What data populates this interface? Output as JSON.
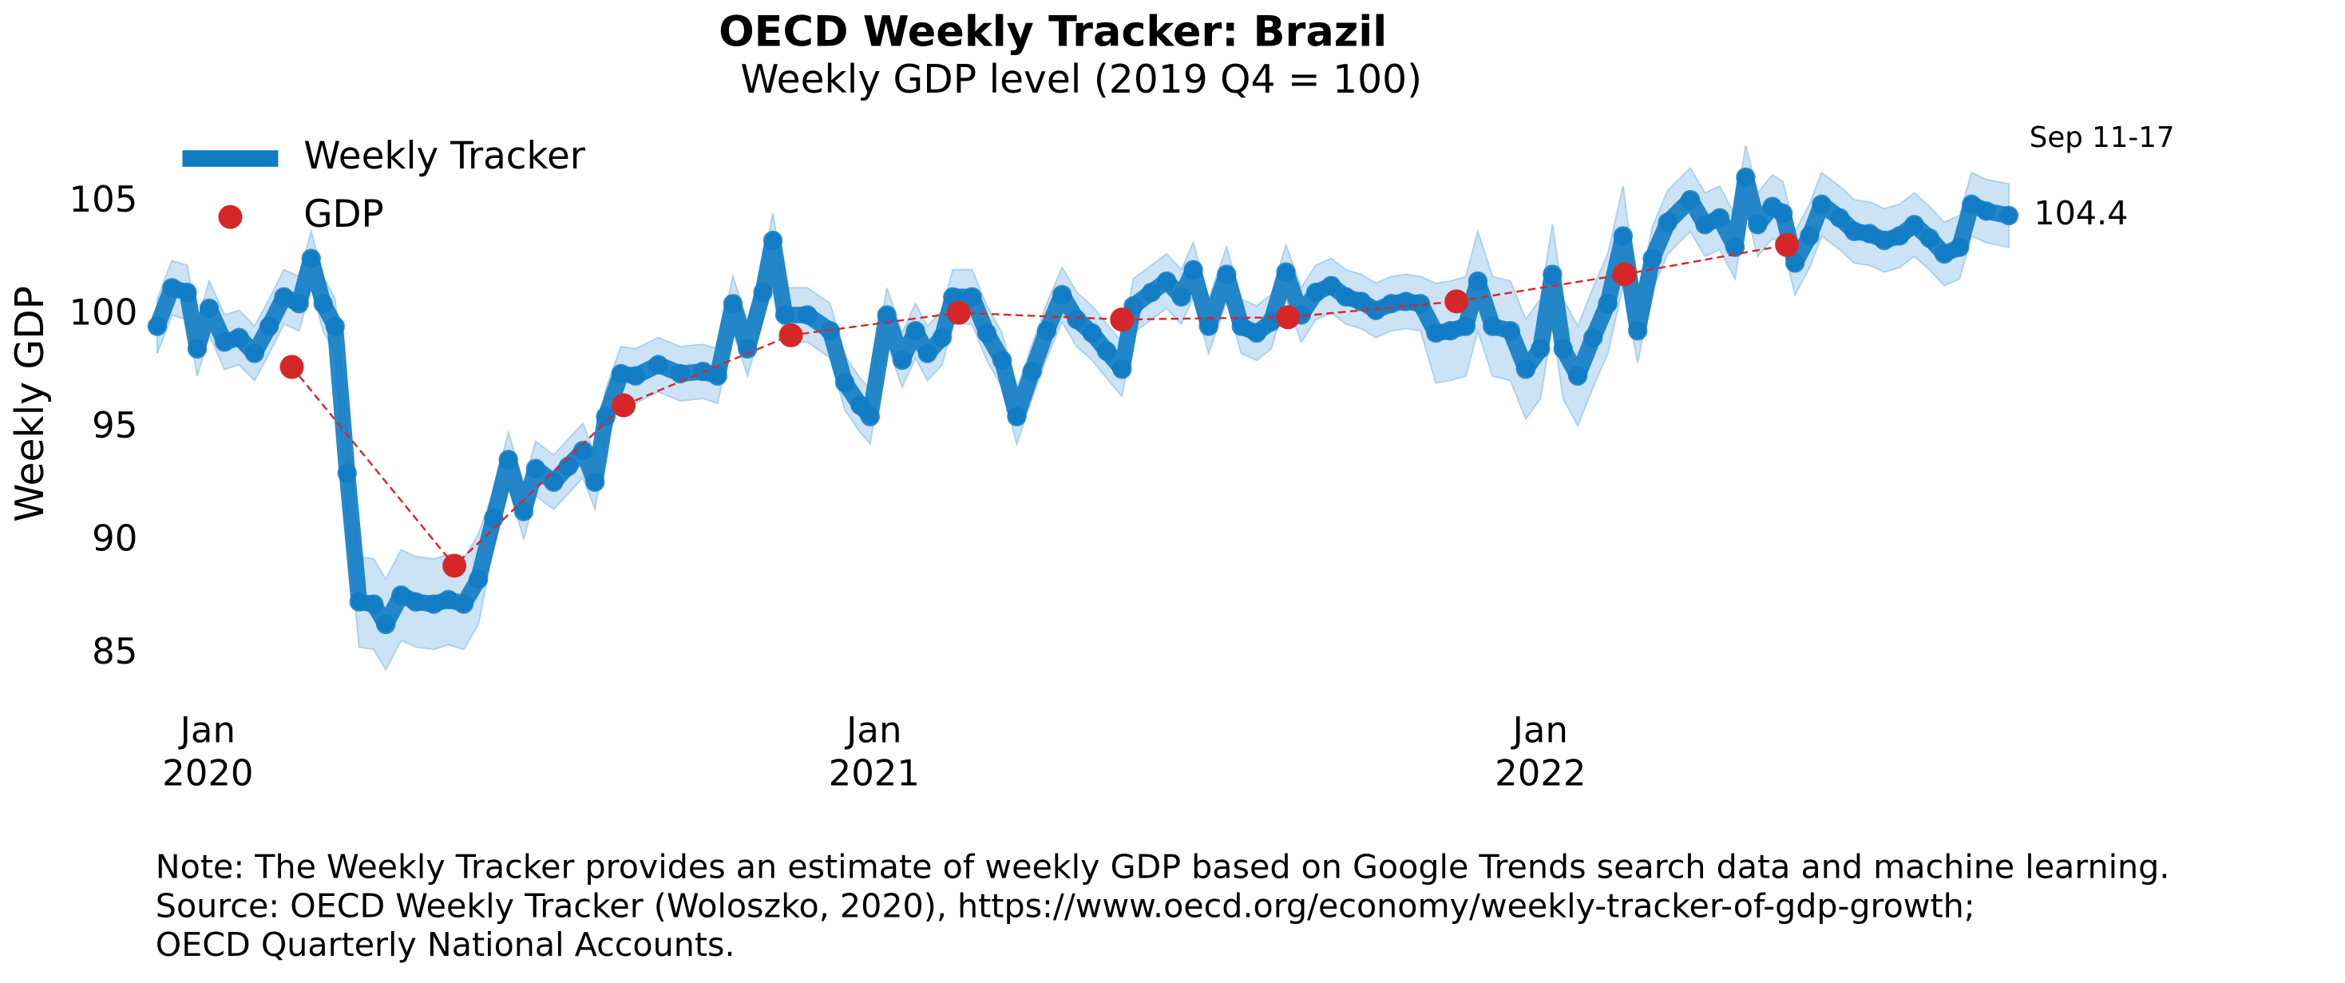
{
  "chart_data": {
    "type": "line",
    "title": "OECD Weekly Tracker: Brazil",
    "subtitle": "Weekly GDP level (2019 Q4 = 100)",
    "ylabel": "Weekly GDP",
    "xlim": [
      2019.91,
      2022.72
    ],
    "ylim": [
      82.8,
      108.3
    ],
    "xticks": [
      {
        "value": 2020,
        "label": "Jan\n2020"
      },
      {
        "value": 2021,
        "label": "Jan\n2021"
      },
      {
        "value": 2022,
        "label": "Jan\n2022"
      }
    ],
    "yticks": [
      85,
      90,
      95,
      100,
      105
    ],
    "grid": false,
    "legend": "upper left",
    "series": [
      {
        "name": "Weekly Tracker",
        "color": "#0f7bc4",
        "band_color": "#a9d0ec",
        "x": [
          2019.924,
          2019.946,
          2019.969,
          2019.984,
          2020.002,
          2020.025,
          2020.047,
          2020.07,
          2020.092,
          2020.114,
          2020.137,
          2020.155,
          2020.173,
          2020.191,
          2020.209,
          2020.227,
          2020.249,
          2020.267,
          2020.29,
          2020.312,
          2020.339,
          2020.361,
          2020.384,
          2020.406,
          2020.429,
          2020.451,
          2020.474,
          2020.492,
          2020.519,
          2020.541,
          2020.563,
          2020.581,
          2020.597,
          2020.62,
          2020.642,
          2020.676,
          2020.709,
          2020.743,
          2020.765,
          2020.788,
          2020.81,
          2020.833,
          2020.848,
          2020.866,
          2020.9,
          2020.934,
          2020.956,
          2020.979,
          2020.994,
          2021.019,
          2021.042,
          2021.062,
          2021.08,
          2021.102,
          2021.118,
          2021.147,
          2021.169,
          2021.192,
          2021.214,
          2021.237,
          2021.259,
          2021.282,
          2021.304,
          2021.327,
          2021.349,
          2021.372,
          2021.389,
          2021.416,
          2021.439,
          2021.461,
          2021.479,
          2021.502,
          2021.529,
          2021.551,
          2021.574,
          2021.596,
          2021.618,
          2021.641,
          2021.663,
          2021.686,
          2021.708,
          2021.731,
          2021.753,
          2021.776,
          2021.798,
          2021.82,
          2021.843,
          2021.865,
          2021.888,
          2021.906,
          2021.928,
          2021.955,
          2021.978,
          2022.0,
          2022.018,
          2022.034,
          2022.056,
          2022.079,
          2022.101,
          2022.124,
          2022.146,
          2022.168,
          2022.191,
          2022.225,
          2022.247,
          2022.269,
          2022.292,
          2022.308,
          2022.326,
          2022.348,
          2022.364,
          2022.382,
          2022.404,
          2022.422,
          2022.449,
          2022.471,
          2022.494,
          2022.516,
          2022.539,
          2022.561,
          2022.584,
          2022.606,
          2022.629,
          2022.647,
          2022.669,
          2022.703
        ],
        "values": [
          99.5,
          101.2,
          101.0,
          98.5,
          100.3,
          98.8,
          99.0,
          98.3,
          99.5,
          100.8,
          100.5,
          102.5,
          100.5,
          99.5,
          93.0,
          87.3,
          87.2,
          86.3,
          87.6,
          87.3,
          87.2,
          87.4,
          87.2,
          88.3,
          91.0,
          93.6,
          91.3,
          93.2,
          92.6,
          93.3,
          94.0,
          92.6,
          95.5,
          97.4,
          97.3,
          97.8,
          97.4,
          97.5,
          97.3,
          100.5,
          98.5,
          101.0,
          103.3,
          100.0,
          100.0,
          99.3,
          97.0,
          96.0,
          95.5,
          100.0,
          98.0,
          99.3,
          98.3,
          99.0,
          100.8,
          100.8,
          99.2,
          98.0,
          95.5,
          97.5,
          99.3,
          100.9,
          99.8,
          99.2,
          98.4,
          97.6,
          100.4,
          101.0,
          101.5,
          100.8,
          102.0,
          99.5,
          101.8,
          99.5,
          99.2,
          99.7,
          101.9,
          100.0,
          101.0,
          101.3,
          100.8,
          100.6,
          100.2,
          100.5,
          100.6,
          100.5,
          99.2,
          99.3,
          99.5,
          101.5,
          99.5,
          99.3,
          97.6,
          98.5,
          101.8,
          98.5,
          97.3,
          99.0,
          100.5,
          103.5,
          99.3,
          102.5,
          104.1,
          105.1,
          104.0,
          104.3,
          103.0,
          106.1,
          104.0,
          104.8,
          104.5,
          102.3,
          103.5,
          104.9,
          104.3,
          103.7,
          103.6,
          103.3,
          103.5,
          104.0,
          103.4,
          102.7,
          103.0,
          104.9,
          104.6,
          104.4
        ],
        "lower": [
          98.3,
          100.0,
          99.8,
          97.3,
          99.1,
          97.6,
          97.8,
          97.1,
          98.3,
          99.6,
          99.3,
          101.3,
          99.3,
          98.3,
          91.0,
          85.3,
          85.2,
          84.3,
          85.6,
          85.3,
          85.2,
          85.4,
          85.2,
          86.3,
          89.8,
          92.4,
          90.1,
          92.0,
          91.4,
          92.1,
          92.8,
          91.4,
          94.3,
          96.2,
          96.1,
          96.6,
          96.2,
          96.3,
          96.1,
          99.3,
          97.3,
          99.8,
          102.1,
          98.8,
          98.8,
          98.1,
          95.8,
          94.8,
          94.3,
          98.8,
          96.8,
          98.1,
          97.1,
          97.8,
          99.6,
          99.6,
          98.0,
          96.8,
          94.3,
          96.3,
          98.1,
          99.7,
          98.6,
          98.0,
          97.2,
          96.4,
          99.2,
          99.8,
          100.3,
          99.6,
          100.8,
          98.3,
          100.6,
          98.3,
          98.0,
          98.5,
          100.7,
          98.8,
          99.8,
          100.1,
          99.6,
          99.4,
          99.0,
          99.3,
          99.4,
          99.3,
          97.0,
          97.1,
          97.3,
          99.3,
          97.3,
          97.1,
          95.4,
          96.3,
          99.6,
          96.3,
          95.1,
          96.8,
          98.3,
          101.3,
          97.9,
          101.1,
          102.7,
          103.7,
          102.6,
          102.9,
          101.6,
          104.7,
          102.6,
          103.4,
          103.1,
          100.9,
          102.1,
          103.5,
          102.9,
          102.3,
          102.2,
          101.9,
          102.1,
          102.6,
          102.0,
          101.3,
          101.6,
          103.5,
          103.2,
          103.0
        ],
        "upper": [
          100.7,
          102.4,
          102.2,
          99.7,
          101.5,
          100.0,
          100.2,
          99.5,
          100.7,
          102.0,
          101.7,
          103.7,
          101.7,
          100.7,
          95.0,
          89.3,
          89.2,
          88.3,
          89.6,
          89.3,
          89.2,
          89.4,
          89.2,
          90.3,
          92.2,
          94.8,
          92.5,
          94.4,
          93.8,
          94.5,
          95.2,
          93.8,
          96.7,
          98.6,
          98.5,
          99.0,
          98.6,
          98.7,
          98.5,
          101.7,
          99.7,
          102.2,
          104.5,
          101.2,
          101.2,
          100.5,
          98.2,
          97.2,
          96.7,
          101.2,
          99.2,
          100.5,
          99.5,
          100.2,
          102.0,
          102.0,
          100.4,
          99.2,
          96.7,
          98.7,
          100.5,
          102.1,
          101.0,
          100.4,
          99.6,
          98.8,
          101.6,
          102.2,
          102.7,
          102.0,
          103.2,
          100.7,
          103.0,
          100.7,
          100.4,
          100.9,
          103.1,
          101.2,
          102.2,
          102.5,
          102.0,
          101.8,
          101.4,
          101.7,
          101.8,
          101.7,
          101.4,
          101.5,
          101.7,
          103.7,
          101.7,
          101.5,
          99.8,
          100.7,
          104.0,
          100.7,
          99.5,
          101.2,
          102.7,
          105.7,
          100.7,
          103.9,
          105.5,
          106.5,
          105.4,
          105.7,
          104.4,
          107.5,
          105.4,
          106.2,
          105.9,
          103.7,
          104.9,
          106.3,
          105.7,
          105.1,
          105.0,
          104.7,
          104.9,
          105.4,
          104.8,
          104.1,
          104.4,
          106.3,
          106.0,
          105.8
        ]
      },
      {
        "name": "GDP",
        "color": "#d62728",
        "x": [
          2020.126,
          2020.37,
          2020.624,
          2020.875,
          2021.127,
          2021.372,
          2021.621,
          2021.874,
          2022.126,
          2022.37
        ],
        "values": [
          97.7,
          88.9,
          96.0,
          99.1,
          100.1,
          99.8,
          99.9,
          100.6,
          101.8,
          103.1
        ]
      }
    ],
    "latest_period": "Sep 11-17",
    "latest_label": "104.4",
    "note": [
      "Note: The Weekly Tracker provides an estimate of weekly GDP based on Google Trends search data and machine learning.",
      "Source: OECD Weekly Tracker (Woloszko, 2020), https://www.oecd.org/economy/weekly-tracker-of-gdp-growth;",
      "OECD Quarterly National Accounts."
    ]
  }
}
